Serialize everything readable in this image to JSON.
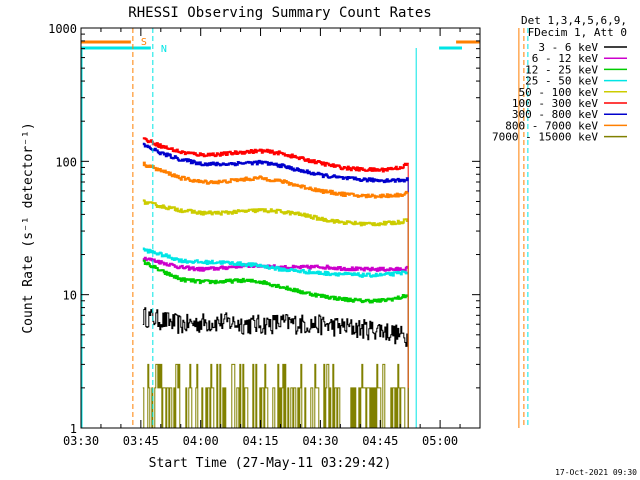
{
  "chart_data": {
    "type": "line",
    "title": "RHESSI Observing Summary Count Rates",
    "xlabel": "Start Time (27-May-11 03:29:42)",
    "ylabel": "Count Rate (s⁻¹ detector⁻¹)",
    "yscale": "log",
    "ylim": [
      1,
      1000
    ],
    "xlim_minutes": [
      0,
      100
    ],
    "x_ticks": [
      {
        "minute": 0,
        "label": "03:30"
      },
      {
        "minute": 15,
        "label": "03:45"
      },
      {
        "minute": 30,
        "label": "04:00"
      },
      {
        "minute": 45,
        "label": "04:15"
      },
      {
        "minute": 60,
        "label": "04:30"
      },
      {
        "minute": 75,
        "label": "04:45"
      },
      {
        "minute": 90,
        "label": "05:00"
      }
    ],
    "y_ticks": [
      {
        "value": 1,
        "label": "1"
      },
      {
        "value": 10,
        "label": "10"
      },
      {
        "value": 100,
        "label": "100"
      },
      {
        "value": 1000,
        "label": "1000"
      }
    ],
    "legend_header": [
      "Det 1,3,4,5,6,9,",
      "FDecim 1, Att 0"
    ],
    "data_window_minutes": [
      15,
      91
    ],
    "series": [
      {
        "name": "3 - 6 keV",
        "color": "#000000",
        "values": [
          [
            15,
            7
          ],
          [
            20,
            6.5
          ],
          [
            25,
            6
          ],
          [
            30,
            6.2
          ],
          [
            35,
            6.3
          ],
          [
            40,
            6.1
          ],
          [
            45,
            6
          ],
          [
            50,
            6.2
          ],
          [
            55,
            6.1
          ],
          [
            60,
            6
          ],
          [
            65,
            5.8
          ],
          [
            70,
            5.6
          ],
          [
            75,
            5.5
          ],
          [
            80,
            5
          ],
          [
            82,
            4.8
          ]
        ]
      },
      {
        "name": "6 - 12 keV",
        "color": "#cc00cc",
        "values": [
          [
            15,
            19
          ],
          [
            20,
            17.5
          ],
          [
            25,
            16
          ],
          [
            30,
            15.5
          ],
          [
            35,
            15.8
          ],
          [
            40,
            16.5
          ],
          [
            45,
            16.5
          ],
          [
            50,
            16
          ],
          [
            55,
            16
          ],
          [
            60,
            16.2
          ],
          [
            65,
            15.8
          ],
          [
            70,
            15.5
          ],
          [
            75,
            15.5
          ],
          [
            80,
            15.5
          ],
          [
            82,
            15.8
          ]
        ]
      },
      {
        "name": "12 - 25 keV",
        "color": "#00cc00",
        "values": [
          [
            15,
            18
          ],
          [
            20,
            15
          ],
          [
            25,
            13
          ],
          [
            30,
            12.5
          ],
          [
            35,
            12.5
          ],
          [
            40,
            12.8
          ],
          [
            45,
            12.5
          ],
          [
            50,
            11.5
          ],
          [
            55,
            10.5
          ],
          [
            60,
            9.8
          ],
          [
            65,
            9.3
          ],
          [
            70,
            9
          ],
          [
            75,
            9
          ],
          [
            80,
            9.5
          ],
          [
            82,
            10
          ]
        ]
      },
      {
        "name": "25 - 50 keV",
        "color": "#00e5e5",
        "values": [
          [
            15,
            22
          ],
          [
            20,
            20
          ],
          [
            25,
            18
          ],
          [
            30,
            17.5
          ],
          [
            35,
            17.5
          ],
          [
            40,
            17
          ],
          [
            45,
            16.5
          ],
          [
            50,
            15.5
          ],
          [
            55,
            15
          ],
          [
            60,
            14.5
          ],
          [
            65,
            14.3
          ],
          [
            70,
            14
          ],
          [
            75,
            14
          ],
          [
            80,
            14.5
          ],
          [
            82,
            15
          ]
        ]
      },
      {
        "name": "50 - 100 keV",
        "color": "#cccc00",
        "values": [
          [
            15,
            50
          ],
          [
            20,
            46
          ],
          [
            25,
            43
          ],
          [
            30,
            41
          ],
          [
            35,
            41
          ],
          [
            40,
            42
          ],
          [
            45,
            43
          ],
          [
            50,
            42
          ],
          [
            55,
            40
          ],
          [
            60,
            37
          ],
          [
            65,
            35
          ],
          [
            70,
            34
          ],
          [
            75,
            34
          ],
          [
            80,
            35
          ],
          [
            82,
            37
          ]
        ]
      },
      {
        "name": "100 - 300 keV",
        "color": "#ff0000",
        "values": [
          [
            15,
            150
          ],
          [
            20,
            130
          ],
          [
            25,
            117
          ],
          [
            30,
            112
          ],
          [
            35,
            113
          ],
          [
            40,
            117
          ],
          [
            45,
            120
          ],
          [
            50,
            115
          ],
          [
            55,
            105
          ],
          [
            60,
            97
          ],
          [
            65,
            90
          ],
          [
            70,
            87
          ],
          [
            75,
            86
          ],
          [
            80,
            90
          ],
          [
            82,
            96
          ]
        ]
      },
      {
        "name": "300 - 800 keV",
        "color": "#0000cc",
        "values": [
          [
            15,
            135
          ],
          [
            20,
            115
          ],
          [
            25,
            103
          ],
          [
            30,
            96
          ],
          [
            35,
            95
          ],
          [
            40,
            97
          ],
          [
            45,
            98
          ],
          [
            50,
            93
          ],
          [
            55,
            85
          ],
          [
            60,
            79
          ],
          [
            65,
            75
          ],
          [
            70,
            73
          ],
          [
            75,
            72
          ],
          [
            80,
            72
          ],
          [
            82,
            73
          ]
        ]
      },
      {
        "name": "800 - 7000 keV",
        "color": "#ff7f00",
        "values": [
          [
            15,
            97
          ],
          [
            20,
            85
          ],
          [
            25,
            75
          ],
          [
            30,
            70
          ],
          [
            35,
            70
          ],
          [
            40,
            73
          ],
          [
            45,
            75
          ],
          [
            50,
            71
          ],
          [
            55,
            65
          ],
          [
            60,
            60
          ],
          [
            65,
            57
          ],
          [
            70,
            55
          ],
          [
            75,
            55
          ],
          [
            80,
            56
          ],
          [
            82,
            58
          ]
        ]
      },
      {
        "name": "7000 - 15000 keV",
        "color": "#808000",
        "values": [
          [
            15,
            2
          ],
          [
            30,
            2
          ],
          [
            35,
            2.5
          ],
          [
            40,
            3
          ],
          [
            45,
            3
          ],
          [
            50,
            2.5
          ],
          [
            55,
            2
          ],
          [
            70,
            2
          ],
          [
            75,
            2.5
          ],
          [
            80,
            2
          ],
          [
            82,
            2
          ]
        ]
      }
    ],
    "markers": [
      {
        "label": "S",
        "minute": 13,
        "color": "#ff7f00"
      },
      {
        "label": "N",
        "minute": 18,
        "color": "#00e5e5"
      }
    ],
    "timestamp": "17-Oct-2021 09:30"
  }
}
